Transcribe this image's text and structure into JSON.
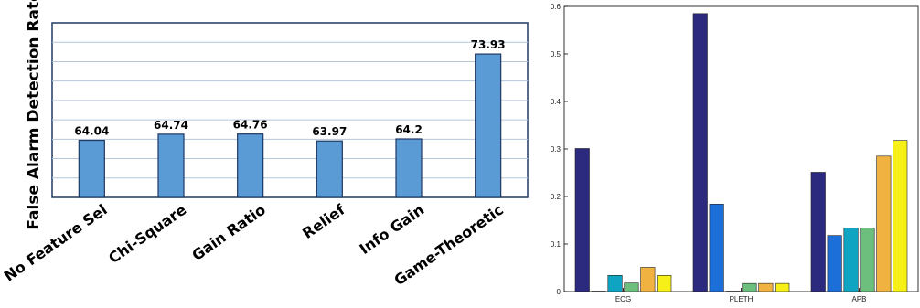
{
  "chart_data": [
    {
      "type": "bar",
      "ylabel": "False Alarm Detection Rate",
      "categories": [
        "No Feature Sel",
        "Chi-Square",
        "Gain Ratio",
        "Relief",
        "Info Gain",
        "Game-Theoretic"
      ],
      "values": [
        64.04,
        64.74,
        64.76,
        63.97,
        64.2,
        73.93
      ],
      "value_labels": [
        "64.04",
        "64.74",
        "64.76",
        "63.97",
        "64.2",
        "73.93"
      ],
      "ylim": [
        57.5,
        77.5
      ],
      "grid": true,
      "colors": {
        "bar": "#5b9bd5",
        "bar_edge": "#1f3864",
        "axis": "#1f3864",
        "grid": "#b4c7d9"
      }
    },
    {
      "type": "bar",
      "categories": [
        "ECG",
        "PLETH",
        "APB"
      ],
      "series": [
        {
          "values": [
            0.301,
            0.585,
            0.251
          ]
        },
        {
          "values": [
            0.001,
            0.184,
            0.118
          ]
        },
        {
          "values": [
            0.034,
            0.001,
            0.134
          ]
        },
        {
          "values": [
            0.018,
            0.017,
            0.134
          ]
        },
        {
          "values": [
            0.051,
            0.017,
            0.285
          ]
        },
        {
          "values": [
            0.034,
            0.017,
            0.318
          ]
        }
      ],
      "series_colors": [
        "#2b2a7e",
        "#1c6fd9",
        "#0fa5c2",
        "#6cbf7c",
        "#f0b342",
        "#f7ef18"
      ],
      "ylim": [
        0,
        0.6
      ],
      "yticks": [
        "0",
        "0.1",
        "0.2",
        "0.3",
        "0.4",
        "0.5",
        "0.6"
      ],
      "grid": false
    }
  ]
}
